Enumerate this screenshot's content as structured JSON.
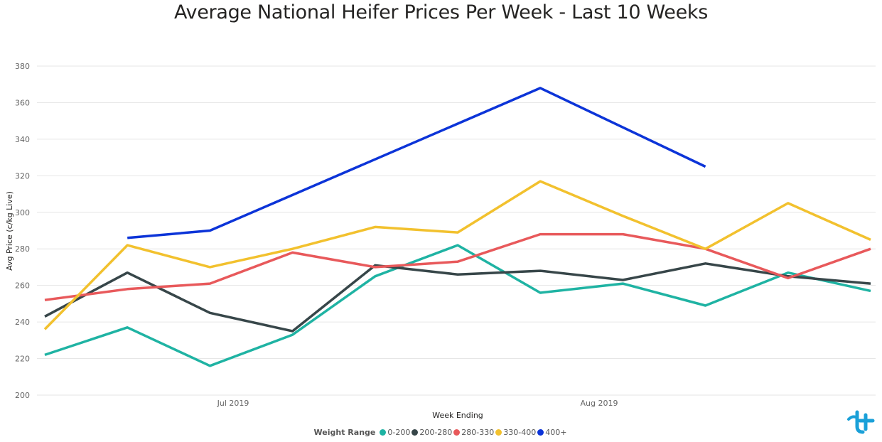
{
  "chart_data": {
    "type": "line",
    "title": "Average National Heifer Prices Per Week - Last 10 Weeks",
    "xlabel": "Week Ending",
    "ylabel": "Avg Price (c/kg Live)",
    "x_tick_labels": [
      "Jul 2019",
      "Aug 2019"
    ],
    "y_ticks": [
      200,
      220,
      240,
      260,
      280,
      300,
      320,
      340,
      360,
      380
    ],
    "ylim": [
      200,
      380
    ],
    "grid": true,
    "legend_title": "Weight Range",
    "legend_position": "bottom-center",
    "series": [
      {
        "name": "0-200",
        "color": "#1fb3a3",
        "values": [
          222,
          237,
          216,
          233,
          265,
          282,
          256,
          261,
          249,
          267,
          257
        ]
      },
      {
        "name": "200-280",
        "color": "#374649",
        "values": [
          243,
          267,
          245,
          235,
          271,
          266,
          268,
          263,
          272,
          265,
          261
        ]
      },
      {
        "name": "280-330",
        "color": "#e8595b",
        "values": [
          252,
          258,
          261,
          278,
          270,
          273,
          288,
          288,
          280,
          264,
          280
        ]
      },
      {
        "name": "330-400",
        "color": "#f2c12e",
        "values": [
          236,
          282,
          270,
          280,
          292,
          289,
          317,
          298,
          280,
          305,
          285
        ]
      },
      {
        "name": "400+",
        "color": "#0c34d8",
        "values": [
          null,
          286,
          290,
          null,
          null,
          null,
          368,
          null,
          325,
          null,
          null
        ]
      }
    ]
  }
}
